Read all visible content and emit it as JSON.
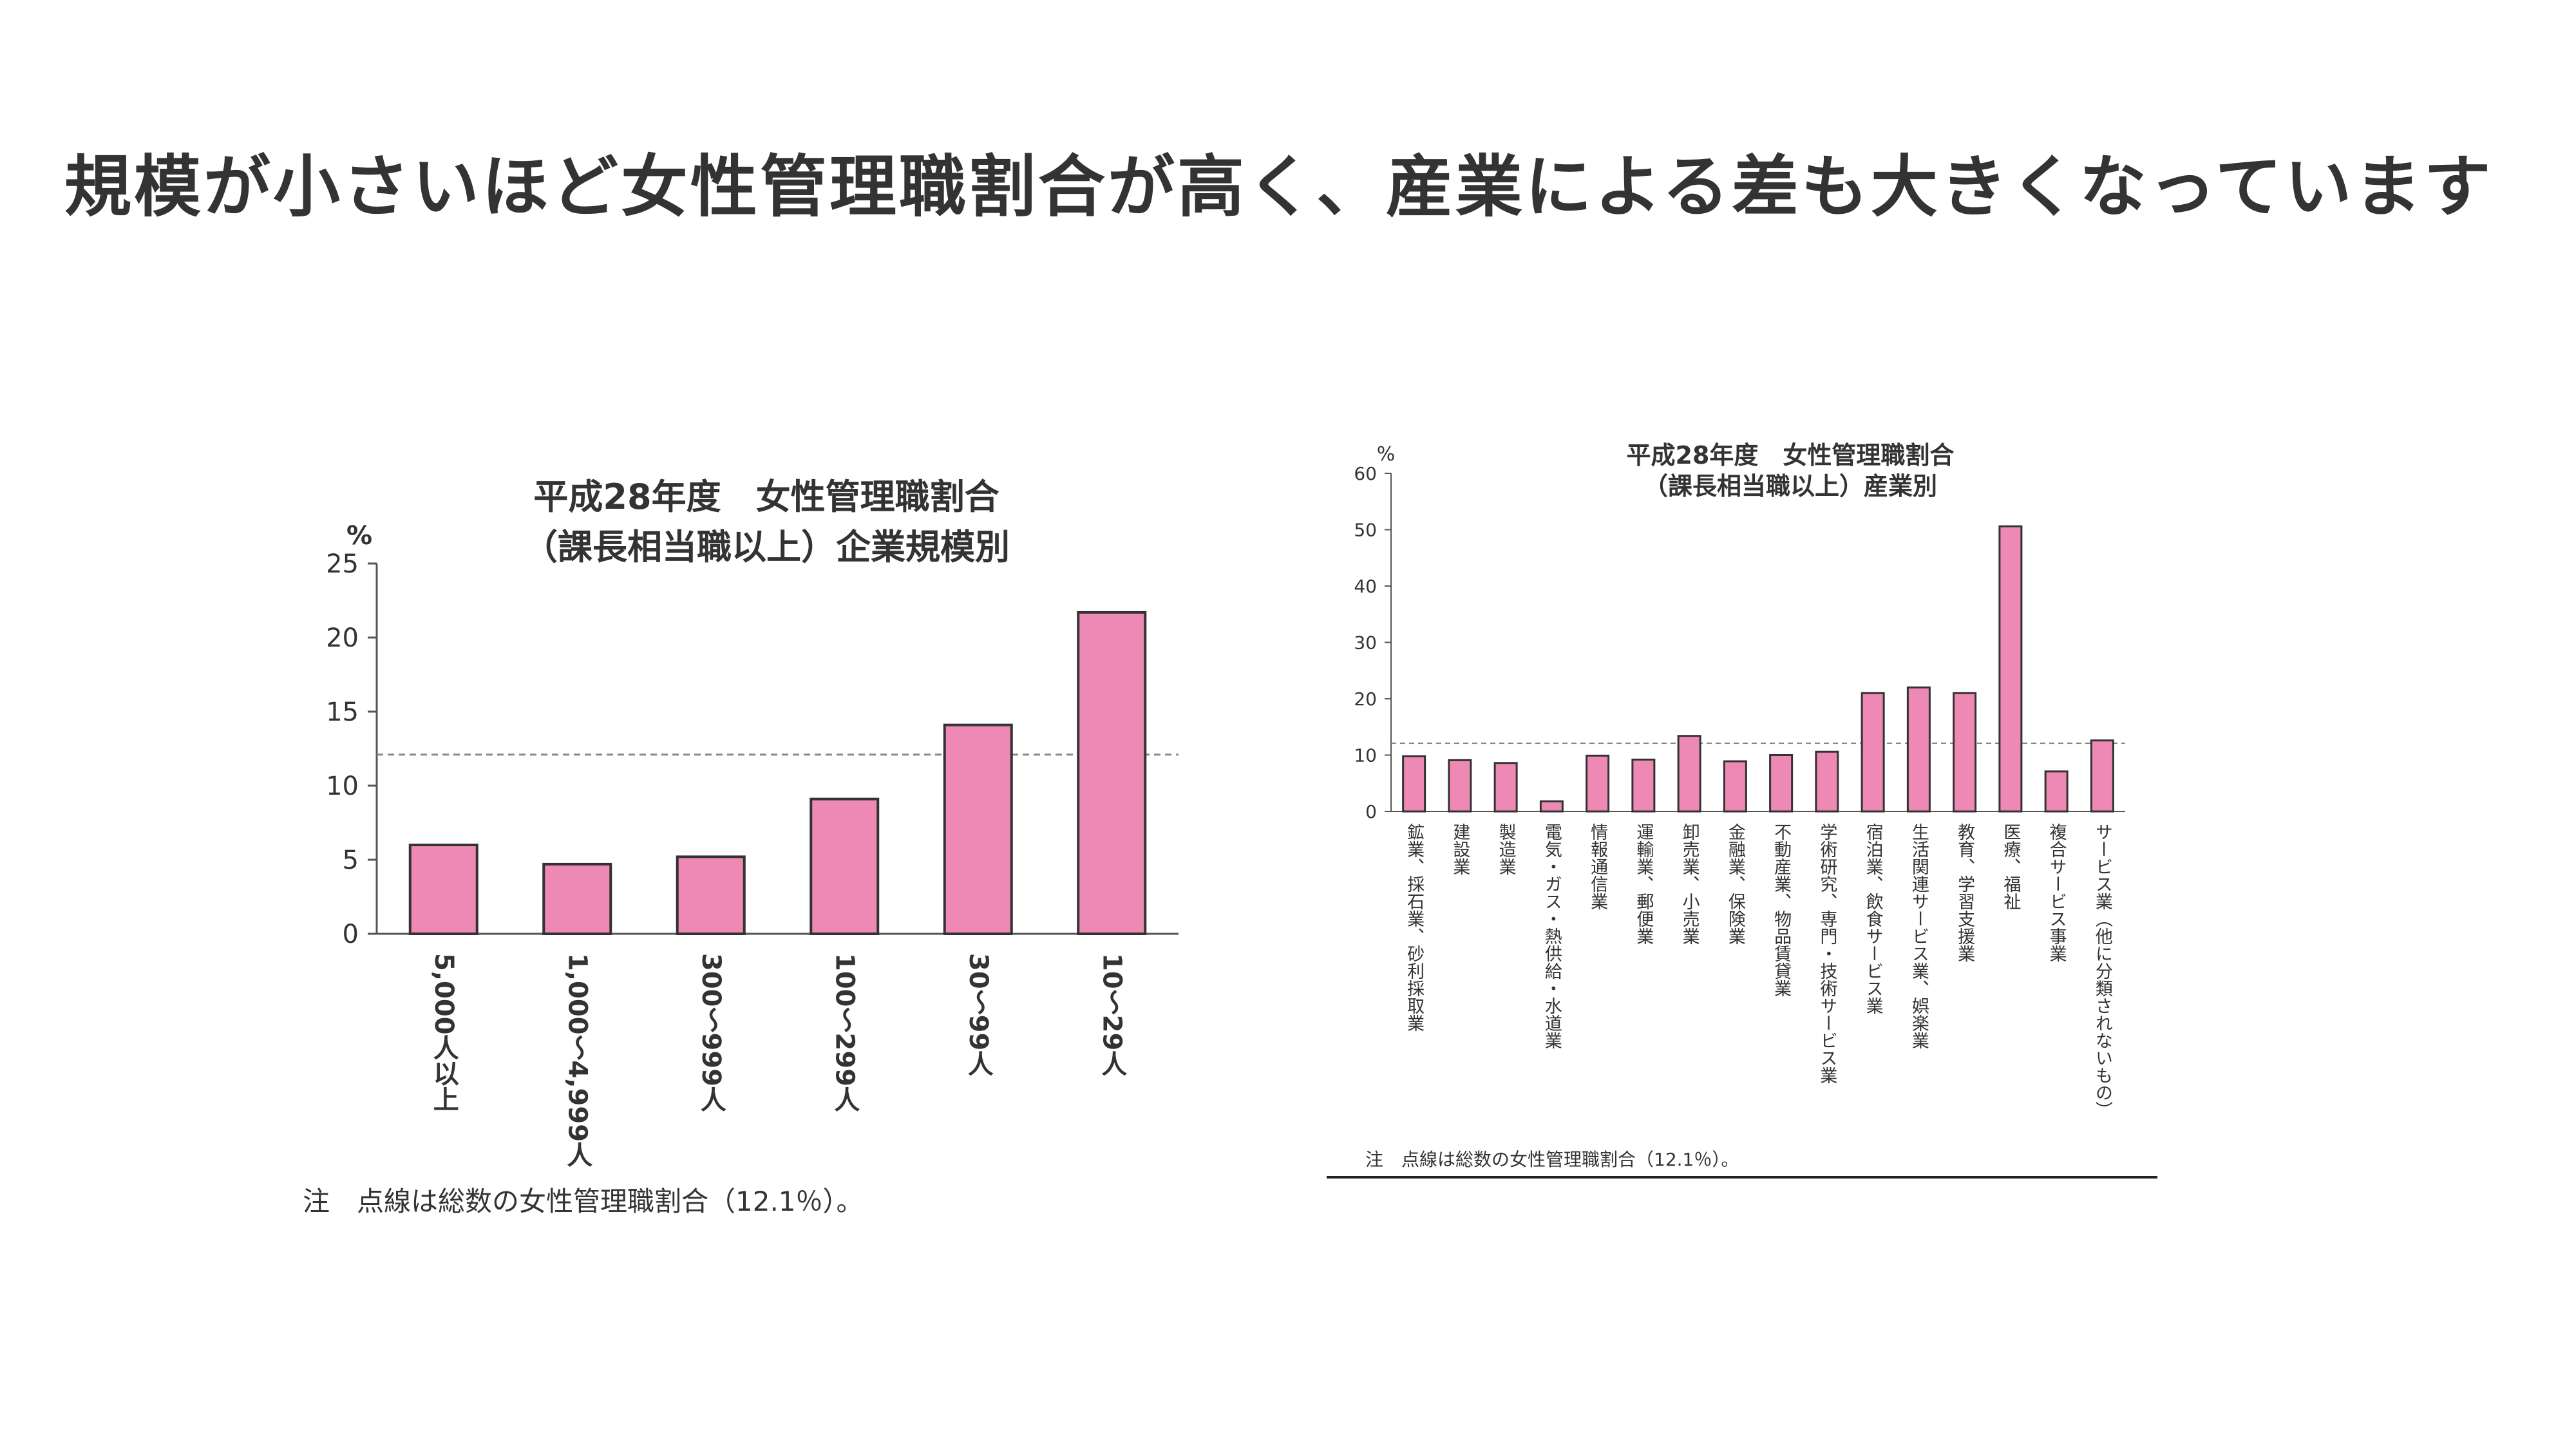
{
  "slide": {
    "title": "規模が小さいほど女性管理職割合が高く、産業による差も大きくなっています"
  },
  "chart_data": [
    {
      "type": "bar",
      "title": "平成28年度　女性管理職割合",
      "subtitle": "（課長相当職以上）企業規模別",
      "ylabel": "%",
      "ylim": [
        0,
        25
      ],
      "yticks": [
        0,
        5,
        10,
        15,
        20,
        25
      ],
      "categories": [
        "5,000人以上",
        "1,000～4,999人",
        "300～999人",
        "100～299人",
        "30～99人",
        "10～29人"
      ],
      "values": [
        6.0,
        4.7,
        5.2,
        9.1,
        14.1,
        21.7
      ],
      "reference_line": 12.1,
      "note": "注　点線は総数の女性管理職割合（12.1％）。",
      "bar_color": "#ee88b4"
    },
    {
      "type": "bar",
      "title": "平成28年度　女性管理職割合",
      "subtitle": "（課長相当職以上）産業別",
      "ylabel": "%",
      "ylim": [
        0,
        60
      ],
      "yticks": [
        0,
        10,
        20,
        30,
        40,
        50,
        60
      ],
      "categories": [
        "鉱業、採石業、砂利採取業",
        "建設業",
        "製造業",
        "電気・ガス・熱供給・水道業",
        "情報通信業",
        "運輸業、郵便業",
        "卸売業、小売業",
        "金融業、保険業",
        "不動産業、物品賃貸業",
        "学術研究、専門・技術サービス業",
        "宿泊業、飲食サービス業",
        "生活関連サービス業、娯楽業",
        "教育、学習支援業",
        "医療、福祉",
        "複合サービス事業",
        "サービス業（他に分類されないもの）"
      ],
      "values": [
        9.8,
        9.1,
        8.6,
        1.8,
        9.9,
        9.2,
        13.4,
        8.9,
        10.0,
        10.6,
        21.0,
        22.0,
        21.0,
        50.6,
        7.1,
        12.6
      ],
      "reference_line": 12.1,
      "note": "注　点線は総数の女性管理職割合（12.1％）。",
      "bar_color": "#ee88b4"
    }
  ]
}
